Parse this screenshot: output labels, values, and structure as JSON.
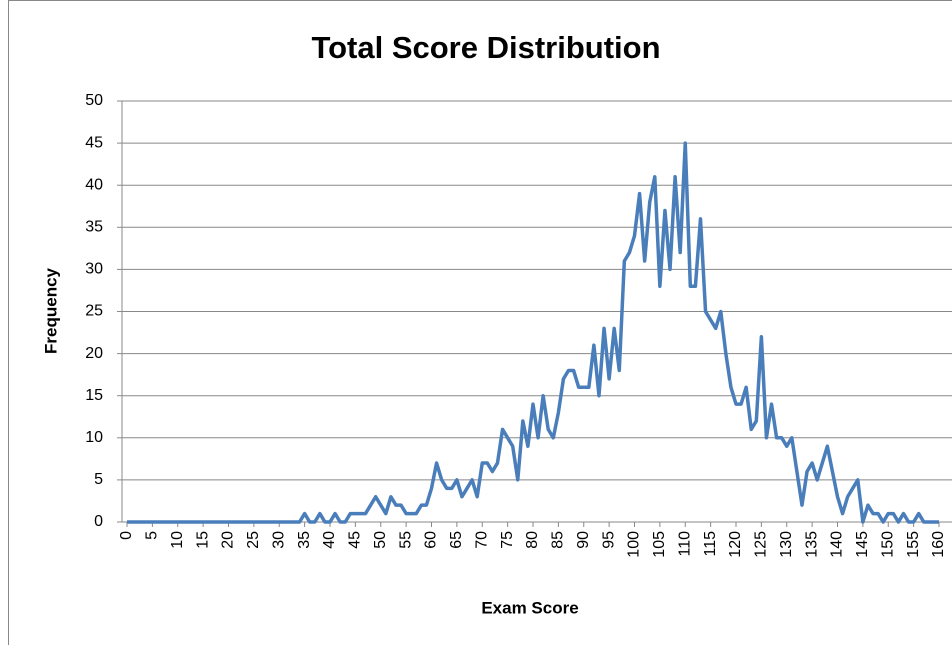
{
  "chart_data": {
    "type": "line",
    "title": "Total Score Distribution",
    "x_label": "Exam Score",
    "y_label": "Frequency",
    "x": [
      0,
      1,
      2,
      3,
      4,
      5,
      6,
      7,
      8,
      9,
      10,
      11,
      12,
      13,
      14,
      15,
      16,
      17,
      18,
      19,
      20,
      21,
      22,
      23,
      24,
      25,
      26,
      27,
      28,
      29,
      30,
      31,
      32,
      33,
      34,
      35,
      36,
      37,
      38,
      39,
      40,
      41,
      42,
      43,
      44,
      45,
      46,
      47,
      48,
      49,
      50,
      51,
      52,
      53,
      54,
      55,
      56,
      57,
      58,
      59,
      60,
      61,
      62,
      63,
      64,
      65,
      66,
      67,
      68,
      69,
      70,
      71,
      72,
      73,
      74,
      75,
      76,
      77,
      78,
      79,
      80,
      81,
      82,
      83,
      84,
      85,
      86,
      87,
      88,
      89,
      90,
      91,
      92,
      93,
      94,
      95,
      96,
      97,
      98,
      99,
      100,
      101,
      102,
      103,
      104,
      105,
      106,
      107,
      108,
      109,
      110,
      111,
      112,
      113,
      114,
      115,
      116,
      117,
      118,
      119,
      120,
      121,
      122,
      123,
      124,
      125,
      126,
      127,
      128,
      129,
      130,
      131,
      132,
      133,
      134,
      135,
      136,
      137,
      138,
      139,
      140,
      141,
      142,
      143,
      144,
      145,
      146,
      147,
      148,
      149,
      150,
      151,
      152,
      153,
      154,
      155,
      156,
      157,
      158,
      159,
      160
    ],
    "values": [
      0,
      0,
      0,
      0,
      0,
      0,
      0,
      0,
      0,
      0,
      0,
      0,
      0,
      0,
      0,
      0,
      0,
      0,
      0,
      0,
      0,
      0,
      0,
      0,
      0,
      0,
      0,
      0,
      0,
      0,
      0,
      0,
      0,
      0,
      0,
      1,
      0,
      0,
      1,
      0,
      0,
      1,
      0,
      0,
      1,
      1,
      1,
      1,
      2,
      3,
      2,
      1,
      3,
      2,
      2,
      1,
      1,
      1,
      2,
      2,
      4,
      7,
      5,
      4,
      4,
      5,
      3,
      4,
      5,
      3,
      7,
      7,
      6,
      7,
      11,
      10,
      9,
      5,
      12,
      9,
      14,
      10,
      15,
      11,
      10,
      13,
      17,
      18,
      18,
      16,
      16,
      16,
      21,
      15,
      23,
      17,
      23,
      18,
      31,
      32,
      34,
      39,
      31,
      38,
      41,
      28,
      37,
      30,
      41,
      32,
      45,
      28,
      28,
      36,
      25,
      24,
      23,
      25,
      20,
      16,
      14,
      14,
      16,
      11,
      12,
      22,
      10,
      14,
      10,
      10,
      9,
      10,
      6,
      2,
      6,
      7,
      5,
      7,
      9,
      6,
      3,
      1,
      3,
      4,
      5,
      0,
      2,
      1,
      1,
      0,
      1,
      1,
      0,
      1,
      0,
      0,
      1,
      0,
      0,
      0,
      0
    ],
    "color": "#4a7ebb",
    "xlim": [
      0,
      160
    ],
    "xticks": [
      0,
      5,
      10,
      15,
      20,
      25,
      30,
      35,
      40,
      45,
      50,
      55,
      60,
      65,
      70,
      75,
      80,
      85,
      90,
      95,
      100,
      105,
      110,
      115,
      120,
      125,
      130,
      135,
      140,
      145,
      150,
      155,
      160
    ],
    "ylim": [
      0,
      50
    ],
    "yticks": [
      0,
      5,
      10,
      15,
      20,
      25,
      30,
      35,
      40,
      45,
      50
    ],
    "grid": true
  }
}
